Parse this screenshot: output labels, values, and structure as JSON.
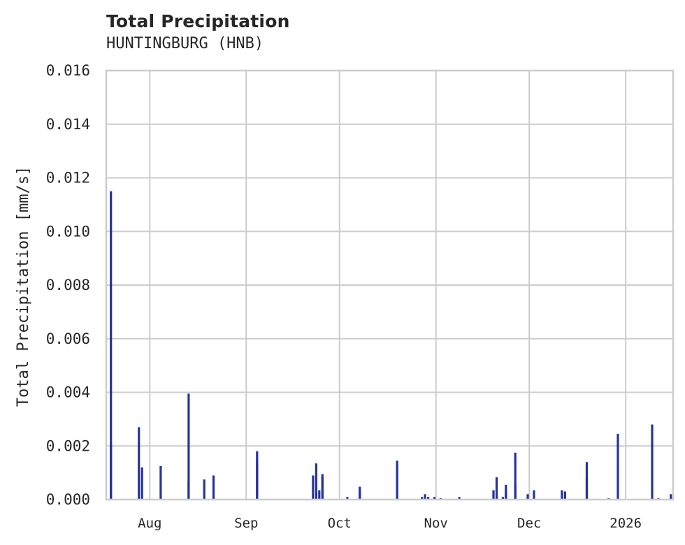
{
  "header": {
    "title": "Total Precipitation",
    "subtitle": "HUNTINGBURG (HNB)"
  },
  "colors": {
    "series": "#26339a",
    "grid": "#cccccc",
    "text": "#262626",
    "background": "#ffffff"
  },
  "chart_data": {
    "type": "area",
    "title": "Total Precipitation",
    "subtitle": "HUNTINGBURG (HNB)",
    "xlabel": "",
    "ylabel": "Total Precipitation [mm/s]",
    "ylim": [
      0.0,
      0.016
    ],
    "yticks": [
      "0.000",
      "0.002",
      "0.004",
      "0.006",
      "0.008",
      "0.010",
      "0.012",
      "0.014",
      "0.016"
    ],
    "xticks": [
      "Aug",
      "Sep",
      "Oct",
      "Nov",
      "Dec",
      "2026"
    ],
    "x_range": [
      "2025-07-18",
      "2026-01-15"
    ],
    "grid": true,
    "legend": null,
    "series": [
      {
        "name": "Total Precipitation",
        "unit": "mm/s",
        "points": [
          {
            "date": "2025-07-19",
            "value": 0.0115
          },
          {
            "date": "2025-07-19",
            "value": 0.0021
          },
          {
            "date": "2025-07-28",
            "value": 0.0027
          },
          {
            "date": "2025-07-29",
            "value": 0.0012
          },
          {
            "date": "2025-08-04",
            "value": 0.00125
          },
          {
            "date": "2025-08-13",
            "value": 0.0007
          },
          {
            "date": "2025-08-13",
            "value": 0.00395
          },
          {
            "date": "2025-08-18",
            "value": 0.00075
          },
          {
            "date": "2025-08-21",
            "value": 0.0009
          },
          {
            "date": "2025-09-04",
            "value": 0.0018
          },
          {
            "date": "2025-09-04",
            "value": 0.00145
          },
          {
            "date": "2025-09-22",
            "value": 0.0009
          },
          {
            "date": "2025-09-23",
            "value": 0.00135
          },
          {
            "date": "2025-09-24",
            "value": 0.00035
          },
          {
            "date": "2025-09-25",
            "value": 0.00095
          },
          {
            "date": "2025-09-25",
            "value": 0.00085
          },
          {
            "date": "2025-10-03",
            "value": 0.0001
          },
          {
            "date": "2025-10-07",
            "value": 0.0003
          },
          {
            "date": "2025-10-07",
            "value": 0.00048
          },
          {
            "date": "2025-10-19",
            "value": 0.00145
          },
          {
            "date": "2025-10-19",
            "value": 0.0013
          },
          {
            "date": "2025-10-27",
            "value": 0.0001
          },
          {
            "date": "2025-10-28",
            "value": 0.0002
          },
          {
            "date": "2025-10-29",
            "value": 0.0001
          },
          {
            "date": "2025-10-31",
            "value": 0.0001
          },
          {
            "date": "2025-11-02",
            "value": 5e-05
          },
          {
            "date": "2025-11-08",
            "value": 0.0001
          },
          {
            "date": "2025-11-19",
            "value": 0.00035
          },
          {
            "date": "2025-11-20",
            "value": 0.00083
          },
          {
            "date": "2025-11-22",
            "value": 0.0001
          },
          {
            "date": "2025-11-23",
            "value": 0.00035
          },
          {
            "date": "2025-11-23",
            "value": 0.00055
          },
          {
            "date": "2025-11-26",
            "value": 0.00175
          },
          {
            "date": "2025-11-26",
            "value": 0.0006
          },
          {
            "date": "2025-11-30",
            "value": 0.0002
          },
          {
            "date": "2025-12-02",
            "value": 0.00035
          },
          {
            "date": "2025-12-11",
            "value": 0.00035
          },
          {
            "date": "2025-12-12",
            "value": 0.0003
          },
          {
            "date": "2025-12-19",
            "value": 0.00085
          },
          {
            "date": "2025-12-19",
            "value": 0.0014
          },
          {
            "date": "2025-12-26",
            "value": 5e-05
          },
          {
            "date": "2025-12-29",
            "value": 0.00245
          },
          {
            "date": "2026-01-09",
            "value": 0.0028
          },
          {
            "date": "2026-01-11",
            "value": 5e-05
          },
          {
            "date": "2026-01-15",
            "value": 0.0002
          }
        ]
      }
    ]
  }
}
